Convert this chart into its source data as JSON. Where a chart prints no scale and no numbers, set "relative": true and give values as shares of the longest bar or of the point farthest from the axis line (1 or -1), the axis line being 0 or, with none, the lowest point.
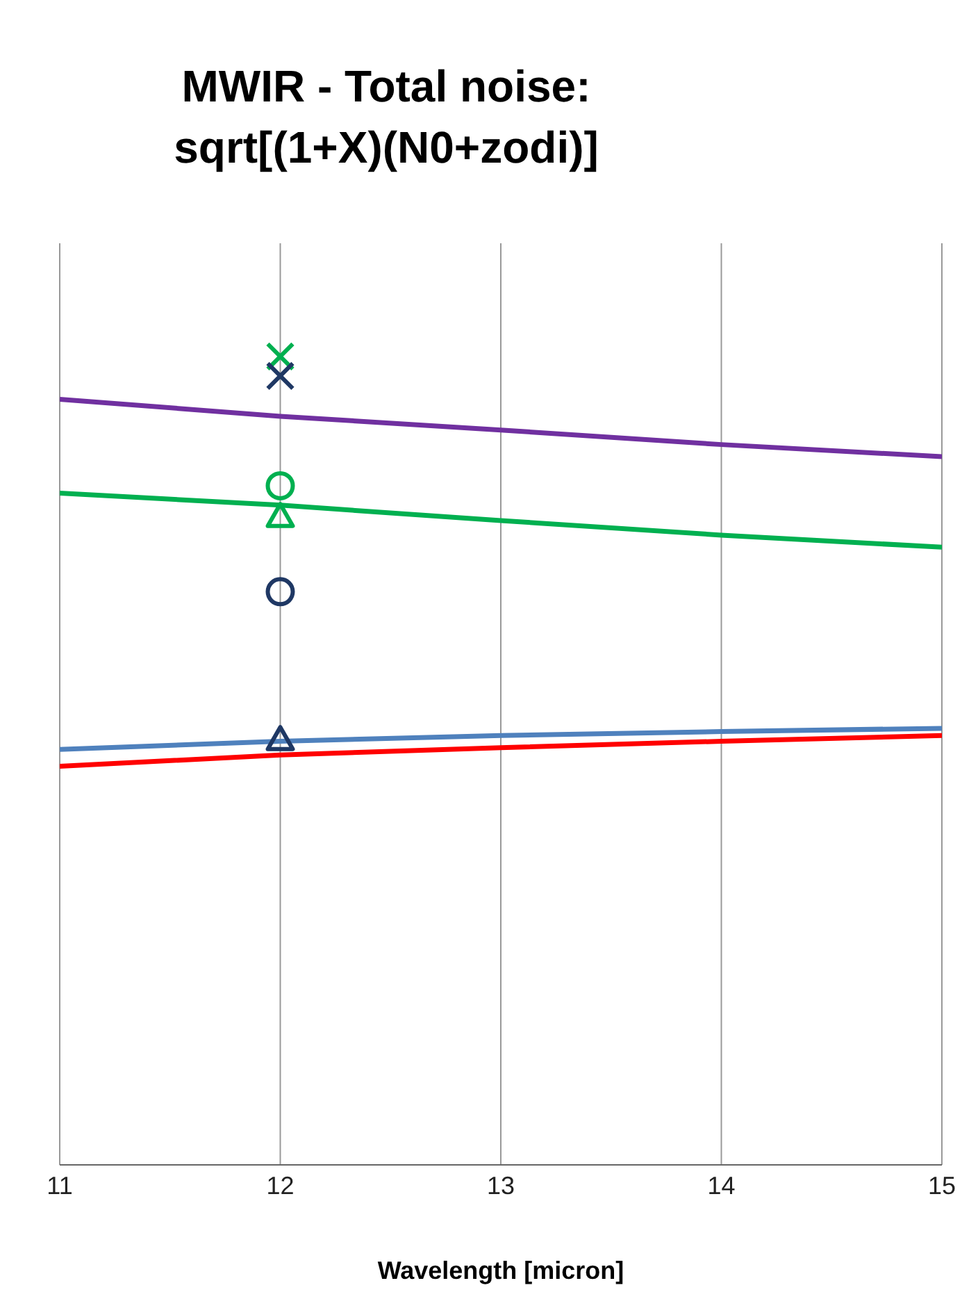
{
  "chart_data": {
    "type": "line",
    "title": "MWIR - Total noise:\nsqrt[(1+X)(N0+zodi)]",
    "xlabel": "Wavelength [micron]",
    "xlim": [
      11,
      15
    ],
    "xticks": [
      11,
      12,
      13,
      14,
      15
    ],
    "relative": true,
    "grid": "x",
    "line_style": "solid",
    "series": [
      {
        "color": "#7030a0",
        "x": [
          11,
          12,
          13,
          14,
          15
        ],
        "values": [
          0.947,
          0.926,
          0.909,
          0.891,
          0.876
        ],
        "marker": "none"
      },
      {
        "color": "#00b050",
        "x": [
          11,
          12,
          13,
          14,
          15
        ],
        "values": [
          0.831,
          0.816,
          0.797,
          0.779,
          0.764
        ],
        "marker": "none"
      },
      {
        "color": "#4f81bd",
        "x": [
          11,
          12,
          13,
          14,
          15
        ],
        "values": [
          0.514,
          0.524,
          0.531,
          0.536,
          0.54
        ],
        "marker": "none"
      },
      {
        "color": "#ff0000",
        "x": [
          11,
          12,
          13,
          14,
          15
        ],
        "values": [
          0.493,
          0.507,
          0.516,
          0.524,
          0.531
        ],
        "marker": "none"
      },
      {
        "type": "scatter",
        "color": "#00b050",
        "x": [
          12
        ],
        "values": [
          1.0
        ],
        "marker": "cross"
      },
      {
        "type": "scatter",
        "color": "#1f3864",
        "x": [
          12
        ],
        "values": [
          0.976
        ],
        "marker": "cross"
      },
      {
        "type": "scatter",
        "color": "#00b050",
        "x": [
          12
        ],
        "values": [
          0.84
        ],
        "marker": "circle"
      },
      {
        "type": "scatter",
        "color": "#00b050",
        "x": [
          12
        ],
        "values": [
          0.802
        ],
        "marker": "triangle"
      },
      {
        "type": "scatter",
        "color": "#1f3864",
        "x": [
          12
        ],
        "values": [
          0.709
        ],
        "marker": "circle"
      },
      {
        "type": "scatter",
        "color": "#1f3864",
        "x": [
          12
        ],
        "values": [
          0.526
        ],
        "marker": "triangle"
      }
    ]
  }
}
